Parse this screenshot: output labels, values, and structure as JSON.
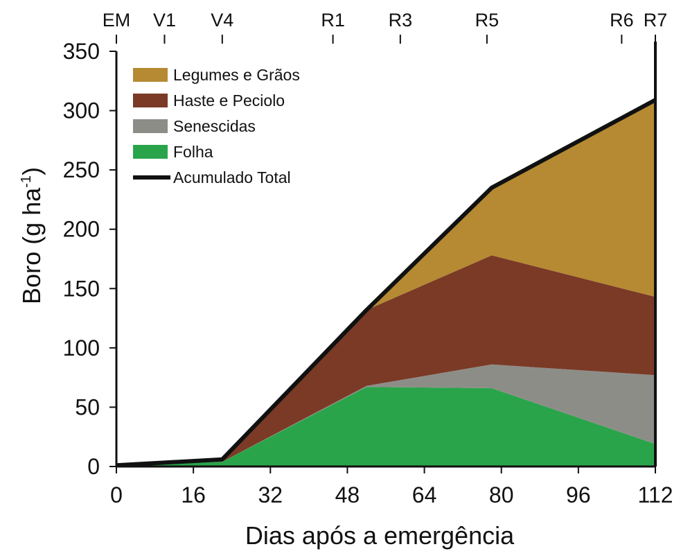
{
  "chart_data": {
    "type": "area",
    "stacked": true,
    "xlabel": "Dias após a emergência",
    "ylabel_main": "Boro (g ha",
    "ylabel_sup": "-1",
    "ylabel_close": ")",
    "xlim": [
      0,
      112
    ],
    "ylim": [
      0,
      350
    ],
    "xticks": [
      0,
      16,
      32,
      48,
      64,
      80,
      96,
      112
    ],
    "yticks": [
      0,
      50,
      100,
      150,
      200,
      250,
      300,
      350
    ],
    "x": [
      0,
      22,
      52,
      78,
      112
    ],
    "series": [
      {
        "name": "Folha",
        "color": "#2aa44a",
        "values": [
          1,
          4,
          67,
          66,
          19
        ]
      },
      {
        "name": "Senescidas",
        "color": "#8d8d88",
        "values": [
          0,
          0,
          1,
          20,
          58
        ]
      },
      {
        "name": "Haste e Peciolo",
        "color": "#7a3a26",
        "values": [
          0,
          2,
          64,
          92,
          66
        ]
      },
      {
        "name": "Legumes e Grãos",
        "color": "#b58a33",
        "values": [
          0,
          0,
          0,
          57,
          165
        ]
      }
    ],
    "total": {
      "name": "Acumulado Total",
      "color": "#111111",
      "values": [
        1,
        6,
        132,
        235,
        309
      ]
    },
    "legend": [
      "Legumes e Grãos",
      "Haste e Peciolo",
      "Senescidas",
      "Folha",
      "Acumulado Total"
    ],
    "stages": [
      {
        "label": "EM",
        "day": 0
      },
      {
        "label": "V1",
        "day": 10
      },
      {
        "label": "V4",
        "day": 22
      },
      {
        "label": "R1",
        "day": 45
      },
      {
        "label": "R3",
        "day": 59
      },
      {
        "label": "R5",
        "day": 77
      },
      {
        "label": "R6",
        "day": 105
      },
      {
        "label": "R7",
        "day": 112
      }
    ],
    "legend_position": "top-left",
    "grid": false
  }
}
